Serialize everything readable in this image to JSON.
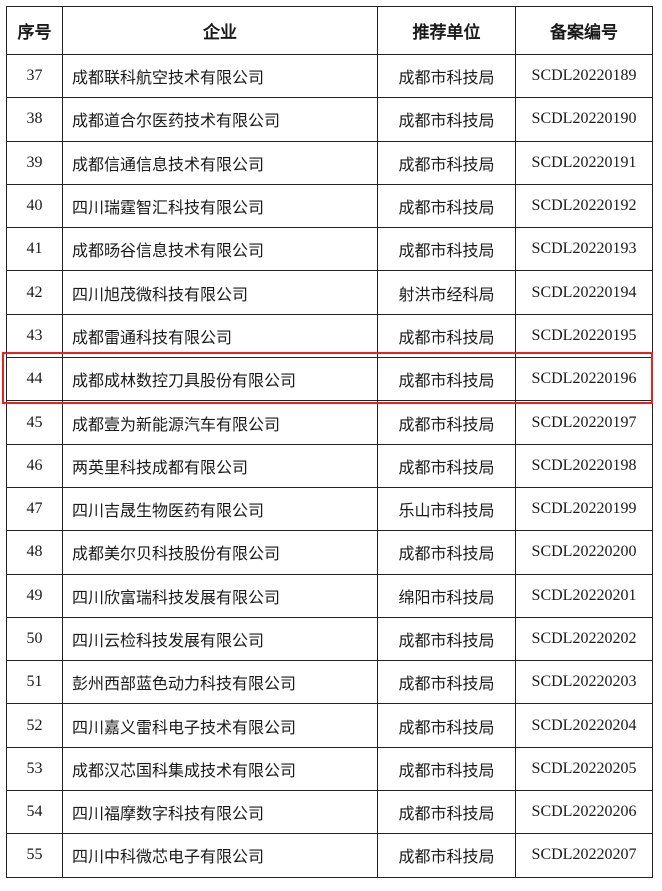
{
  "table": {
    "headers": [
      "序号",
      "企业",
      "推荐单位",
      "备案编号"
    ],
    "rows": [
      {
        "no": "37",
        "company": "成都联科航空技术有限公司",
        "unit": "成都市科技局",
        "code": "SCDL20220189"
      },
      {
        "no": "38",
        "company": "成都道合尔医药技术有限公司",
        "unit": "成都市科技局",
        "code": "SCDL20220190"
      },
      {
        "no": "39",
        "company": "成都信通信息技术有限公司",
        "unit": "成都市科技局",
        "code": "SCDL20220191"
      },
      {
        "no": "40",
        "company": "四川瑞霆智汇科技有限公司",
        "unit": "成都市科技局",
        "code": "SCDL20220192"
      },
      {
        "no": "41",
        "company": "成都旸谷信息技术有限公司",
        "unit": "成都市科技局",
        "code": "SCDL20220193"
      },
      {
        "no": "42",
        "company": "四川旭茂微科技有限公司",
        "unit": "射洪市经科局",
        "code": "SCDL20220194"
      },
      {
        "no": "43",
        "company": "成都雷通科技有限公司",
        "unit": "成都市科技局",
        "code": "SCDL20220195"
      },
      {
        "no": "44",
        "company": "成都成林数控刀具股份有限公司",
        "unit": "成都市科技局",
        "code": "SCDL20220196"
      },
      {
        "no": "45",
        "company": "成都壹为新能源汽车有限公司",
        "unit": "成都市科技局",
        "code": "SCDL20220197"
      },
      {
        "no": "46",
        "company": "两英里科技成都有限公司",
        "unit": "成都市科技局",
        "code": "SCDL20220198"
      },
      {
        "no": "47",
        "company": "四川吉晟生物医药有限公司",
        "unit": "乐山市科技局",
        "code": "SCDL20220199"
      },
      {
        "no": "48",
        "company": "成都美尔贝科技股份有限公司",
        "unit": "成都市科技局",
        "code": "SCDL20220200"
      },
      {
        "no": "49",
        "company": "四川欣富瑞科技发展有限公司",
        "unit": "绵阳市科技局",
        "code": "SCDL20220201"
      },
      {
        "no": "50",
        "company": "四川云检科技发展有限公司",
        "unit": "成都市科技局",
        "code": "SCDL20220202"
      },
      {
        "no": "51",
        "company": "彭州西部蓝色动力科技有限公司",
        "unit": "成都市科技局",
        "code": "SCDL20220203"
      },
      {
        "no": "52",
        "company": "四川嘉义雷科电子技术有限公司",
        "unit": "成都市科技局",
        "code": "SCDL20220204"
      },
      {
        "no": "53",
        "company": "成都汉芯国科集成技术有限公司",
        "unit": "成都市科技局",
        "code": "SCDL20220205"
      },
      {
        "no": "54",
        "company": "四川福摩数字科技有限公司",
        "unit": "成都市科技局",
        "code": "SCDL20220206"
      },
      {
        "no": "55",
        "company": "四川中科微芯电子有限公司",
        "unit": "成都市科技局",
        "code": "SCDL20220207"
      }
    ],
    "highlighted_row": "44",
    "highlight_color": "#e8231d"
  }
}
